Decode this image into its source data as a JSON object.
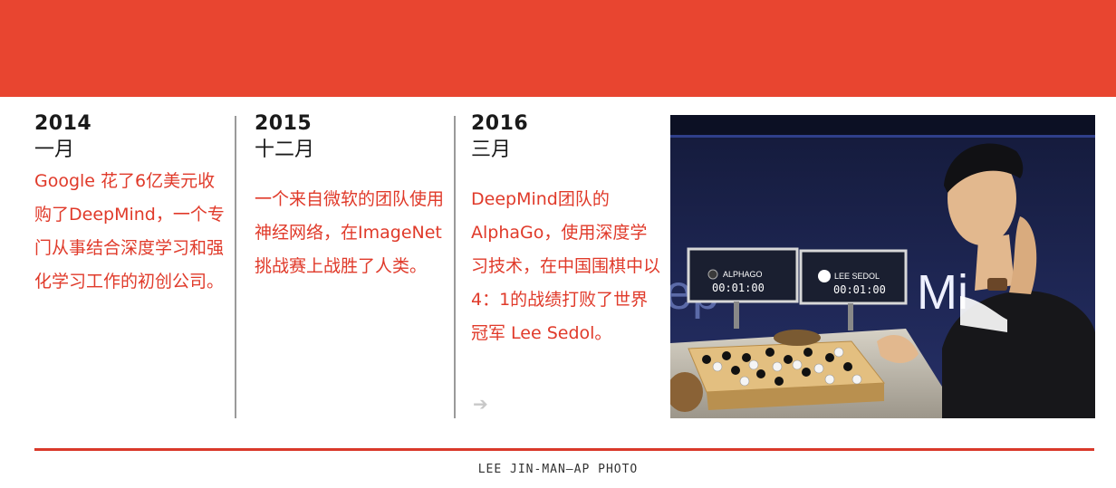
{
  "timeline": [
    {
      "year": "2014",
      "month": "一月",
      "description": "Google 花了6亿美元收购了DeepMind，一个专门从事结合深度学习和强化学习工作的初创公司。"
    },
    {
      "year": "2015",
      "month": "十二月",
      "description": "一个来自微软的团队使用神经网络，在ImageNet挑战赛上战胜了人类。"
    },
    {
      "year": "2016",
      "month": "三月",
      "description": "DeepMind团队的AlphaGo，使用深度学习技术，在中国围棋中以4：1的战绩打败了世界冠军 Lee Sedol。"
    }
  ],
  "photo": {
    "screen_left_name": "ALPHAGO",
    "screen_left_time": "00:01:00",
    "screen_right_name": "LEE SEDOL",
    "screen_right_time": "00:01:00",
    "banner_text": "Mi"
  },
  "credit": "LEE JIN-MAN—AP PHOTO",
  "colors": {
    "accent": "#e84530",
    "text_red": "#e03a2a",
    "text_dark": "#1a1a1a",
    "divider": "#9a9a9a"
  },
  "icons": {
    "arrow": "arrow-right-icon"
  }
}
